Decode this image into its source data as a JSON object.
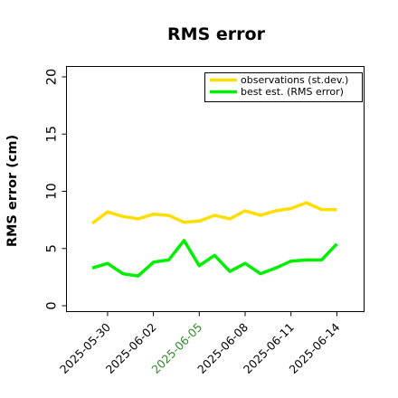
{
  "chart_data": {
    "type": "line",
    "title": "RMS error",
    "xlabel": "",
    "ylabel": "RMS error (cm)",
    "ylim": [
      0,
      21
    ],
    "yticks": [
      0,
      5,
      10,
      15,
      20
    ],
    "ytick_labels": [
      "0",
      "5",
      "10",
      "15",
      "20"
    ],
    "xticks": [
      "2025-05-30",
      "2025-06-02",
      "2025-06-05",
      "2025-06-08",
      "2025-06-11",
      "2025-06-14"
    ],
    "xtick_labels": [
      "2025-05-30",
      "2025-06-02",
      "2025-06-05",
      "2025-06-08",
      "2025-06-11",
      "2025-06-14"
    ],
    "xtick_colors": [
      "#000000",
      "#000000",
      "#2e8b2e",
      "#000000",
      "#000000",
      "#000000"
    ],
    "grid": false,
    "legend_position": "top-right",
    "x": [
      "2025-05-29",
      "2025-05-30",
      "2025-05-31",
      "2025-06-01",
      "2025-06-02",
      "2025-06-03",
      "2025-06-04",
      "2025-06-05",
      "2025-06-06",
      "2025-06-07",
      "2025-06-08",
      "2025-06-09",
      "2025-06-10",
      "2025-06-11",
      "2025-06-12",
      "2025-06-13",
      "2025-06-14"
    ],
    "series": [
      {
        "name": "observations (st.dev.)",
        "color": "#ffdd00",
        "values": [
          7.2,
          8.2,
          7.8,
          7.6,
          8.0,
          7.9,
          7.3,
          7.4,
          7.9,
          7.6,
          8.3,
          7.9,
          8.3,
          8.5,
          9.0,
          8.4,
          8.4
        ]
      },
      {
        "name": "best est. (RMS error)",
        "color": "#00ee00",
        "values": [
          3.3,
          3.7,
          2.8,
          2.6,
          3.8,
          4.0,
          5.7,
          3.5,
          4.4,
          3.0,
          3.7,
          2.8,
          3.3,
          3.9,
          4.0,
          4.0,
          5.4
        ]
      }
    ]
  }
}
